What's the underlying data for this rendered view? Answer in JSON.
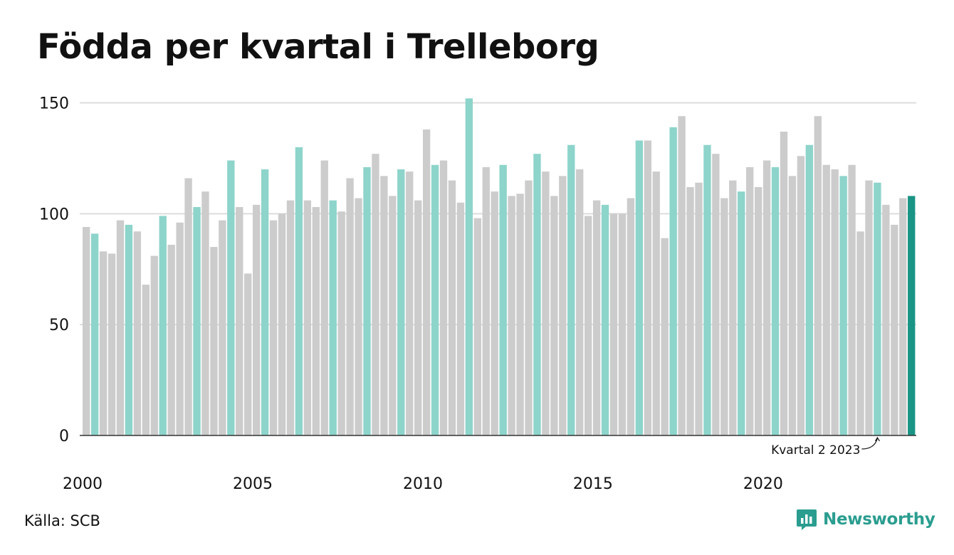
{
  "title": "Födda per kvartal i Trelleborg",
  "source": "Källa: SCB",
  "brand": "Newsworthy",
  "colors": {
    "q2": "#8dd4cb",
    "other": "#cccccc",
    "highlight": "#1a9485",
    "grid": "#dddddd",
    "axis": "#333333",
    "brand": "#2a9d8f"
  },
  "chart_data": {
    "type": "bar",
    "ylim": [
      0,
      150
    ],
    "yticks": [
      0,
      50,
      100,
      150
    ],
    "xticks": [
      "2000",
      "2005",
      "2010",
      "2015",
      "2020"
    ],
    "grid": true,
    "start_year": 2000,
    "highlight_rule": "kvartal 2 = turquoise, senaste = mörk turkos",
    "values": [
      94,
      91,
      83,
      82,
      97,
      95,
      92,
      68,
      81,
      99,
      86,
      96,
      116,
      103,
      110,
      85,
      97,
      124,
      103,
      73,
      104,
      120,
      97,
      100,
      106,
      130,
      106,
      103,
      124,
      106,
      101,
      116,
      107,
      121,
      127,
      117,
      108,
      120,
      119,
      106,
      138,
      122,
      124,
      115,
      105,
      152,
      98,
      121,
      110,
      122,
      108,
      109,
      115,
      127,
      119,
      108,
      117,
      131,
      120,
      99,
      106,
      104,
      100,
      100,
      107,
      133,
      133,
      119,
      89,
      139,
      144,
      112,
      114,
      131,
      127,
      107,
      115,
      110,
      121,
      112,
      124,
      121,
      137,
      117,
      126,
      131,
      144,
      122,
      120,
      117,
      122,
      92,
      115,
      114,
      104,
      95,
      107,
      108
    ],
    "annotation": {
      "label": "Kvartal 2 2023",
      "index": 93
    }
  }
}
